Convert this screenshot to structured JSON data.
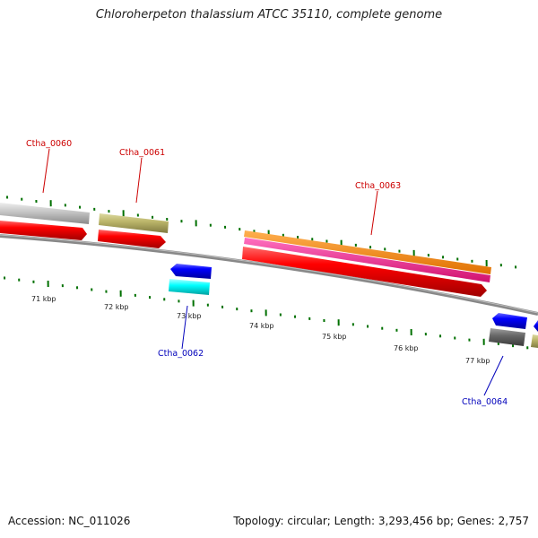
{
  "header": {
    "title": "Chloroherpeton thalassium ATCC 35110, complete genome"
  },
  "footer": {
    "accession": "Accession: NC_011026",
    "info": "Topology: circular; Length: 3,293,456 bp; Genes: 2,757"
  },
  "scale": {
    "unit": "kbp",
    "labels": [
      "71 kbp",
      "72 kbp",
      "73 kbp",
      "74 kbp",
      "75 kbp",
      "76 kbp",
      "77 kbp"
    ]
  },
  "genes": {
    "forward": [
      {
        "id": "gene-ctha-0060",
        "label": "Ctha_0060",
        "color": "#cc0000"
      },
      {
        "id": "gene-ctha-0061",
        "label": "Ctha_0061",
        "color": "#cc0000"
      },
      {
        "id": "gene-ctha-0063",
        "label": "Ctha_0063",
        "color": "#cc0000"
      }
    ],
    "reverse": [
      {
        "id": "gene-ctha-0062",
        "label": "Ctha_0062",
        "color": "#0000bb"
      },
      {
        "id": "gene-ctha-0064",
        "label": "Ctha_0064",
        "color": "#0000bb"
      }
    ]
  },
  "colors": {
    "backbone": "#808080",
    "cds": "#ff0000",
    "reverse_cds": "#0000ff",
    "khaki": "#bdb76b",
    "orange": "#ff8c00",
    "pink": "#ff1493",
    "cyan": "#00ffff",
    "gray": "#696969",
    "silver": "#c8c8c8",
    "tick": "#007000"
  }
}
